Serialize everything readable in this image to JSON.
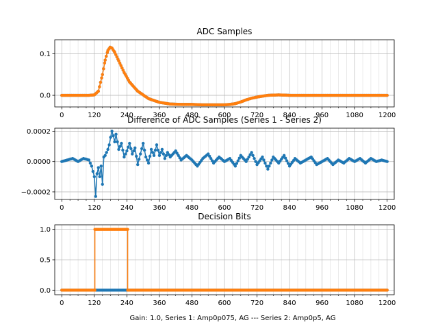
{
  "figure": {
    "xlabel": "Gain: 1.0, Series 1: Amp0p075, AG --- Series 2: Amp0p5, AG"
  },
  "colors": {
    "series1": "#1f77b4",
    "series2": "#ff7f0e",
    "grid": "#b0b0b0"
  },
  "chart_data": [
    {
      "type": "line",
      "title": "ADC Samples",
      "xlim": [
        -26,
        1226
      ],
      "ylim": [
        -0.028,
        0.134
      ],
      "xticks": [
        0,
        120,
        240,
        360,
        480,
        600,
        720,
        840,
        960,
        1080,
        1200
      ],
      "xtick_labels": [
        "0",
        "120",
        "240",
        "360",
        "480",
        "600",
        "720",
        "840",
        "960",
        "1080",
        "1200"
      ],
      "yticks": [
        0.0,
        0.1
      ],
      "ytick_labels": [
        "0.0",
        "0.1"
      ],
      "grid": true,
      "series": [
        {
          "name": "Series 1",
          "x": [
            0,
            100,
            120,
            135,
            150,
            160,
            170,
            178,
            185,
            195,
            210,
            230,
            250,
            280,
            320,
            360,
            400,
            440,
            480,
            520,
            560,
            600,
            620,
            640,
            660,
            680,
            700,
            730,
            760,
            800,
            840,
            900,
            1000,
            1100,
            1200
          ],
          "values": [
            0,
            0,
            0.001,
            0.01,
            0.05,
            0.085,
            0.108,
            0.116,
            0.114,
            0.104,
            0.083,
            0.055,
            0.032,
            0.01,
            -0.008,
            -0.017,
            -0.021,
            -0.022,
            -0.022,
            -0.023,
            -0.023,
            -0.023,
            -0.022,
            -0.02,
            -0.016,
            -0.011,
            -0.007,
            -0.003,
            0,
            0.001,
            0,
            0,
            0,
            0,
            0
          ]
        },
        {
          "name": "Series 2",
          "x": [
            0,
            100,
            120,
            135,
            150,
            160,
            170,
            178,
            185,
            195,
            210,
            230,
            250,
            280,
            320,
            360,
            400,
            440,
            480,
            520,
            560,
            600,
            620,
            640,
            660,
            680,
            700,
            730,
            760,
            800,
            840,
            900,
            1000,
            1100,
            1200
          ],
          "values": [
            0,
            0,
            0.001,
            0.01,
            0.05,
            0.085,
            0.108,
            0.116,
            0.114,
            0.104,
            0.083,
            0.055,
            0.032,
            0.01,
            -0.008,
            -0.017,
            -0.021,
            -0.022,
            -0.022,
            -0.023,
            -0.023,
            -0.023,
            -0.022,
            -0.02,
            -0.016,
            -0.011,
            -0.007,
            -0.003,
            0,
            0.001,
            0,
            0,
            0,
            0,
            0
          ]
        }
      ]
    },
    {
      "type": "line",
      "title": "Difference of ADC Samples (Series 1 - Series 2)",
      "xlim": [
        -26,
        1226
      ],
      "ylim": [
        -0.00025,
        0.00022
      ],
      "xticks": [
        0,
        120,
        240,
        360,
        480,
        600,
        720,
        840,
        960,
        1080,
        1200
      ],
      "xtick_labels": [
        "0",
        "120",
        "240",
        "360",
        "480",
        "600",
        "720",
        "840",
        "960",
        "1080",
        "1200"
      ],
      "yticks": [
        -0.0002,
        0.0,
        0.0002
      ],
      "ytick_labels": [
        "−0.0002",
        "0.0000",
        "0.0002"
      ],
      "grid": true,
      "series": [
        {
          "name": "Series 1 - Series 2",
          "x": [
            0,
            20,
            40,
            60,
            80,
            100,
            110,
            120,
            125,
            130,
            135,
            140,
            145,
            150,
            155,
            160,
            165,
            170,
            175,
            180,
            185,
            190,
            195,
            200,
            210,
            220,
            230,
            240,
            250,
            260,
            270,
            280,
            290,
            300,
            310,
            320,
            330,
            340,
            350,
            360,
            370,
            380,
            390,
            400,
            420,
            440,
            460,
            480,
            500,
            520,
            540,
            560,
            580,
            600,
            620,
            640,
            660,
            680,
            700,
            720,
            740,
            760,
            780,
            800,
            820,
            840,
            860,
            880,
            900,
            920,
            940,
            960,
            980,
            1000,
            1020,
            1040,
            1060,
            1080,
            1100,
            1120,
            1140,
            1160,
            1180,
            1200
          ],
          "values": [
            0,
            1e-05,
            2e-05,
            0,
            2e-05,
            1e-05,
            -3e-05,
            -0.0001,
            -0.00023,
            -8e-05,
            -4e-05,
            -0.0001,
            -3e-05,
            -0.00015,
            3e-05,
            4e-05,
            6e-05,
            8e-05,
            0.00011,
            0.00016,
            0.0002,
            0.00017,
            0.00013,
            0.00018,
            8e-05,
            0.00012,
            3e-05,
            7e-05,
            0.00012,
            5e-05,
            9e-05,
            -2e-05,
            5e-05,
            0.00012,
            3e-05,
            -1e-05,
            8e-05,
            4e-05,
            0.00011,
            4e-05,
            8e-05,
            2e-05,
            6e-05,
            3e-05,
            7e-05,
            1e-05,
            4e-05,
            1e-05,
            -3e-05,
            2e-05,
            5e-05,
            -1e-05,
            3e-05,
            0,
            2e-05,
            -3e-05,
            4e-05,
            0,
            6e-05,
            -2e-05,
            3e-05,
            -5e-05,
            3e-05,
            -1e-05,
            4e-05,
            -3e-05,
            2e-05,
            -1e-05,
            1e-05,
            3e-05,
            -2e-05,
            0,
            2e-05,
            -2e-05,
            1e-05,
            -1e-05,
            2e-05,
            0,
            2e-05,
            -1e-05,
            2e-05,
            0,
            1e-05,
            0
          ]
        }
      ]
    },
    {
      "type": "line",
      "title": "Decision Bits",
      "xlim": [
        -26,
        1226
      ],
      "ylim": [
        -0.075,
        1.075
      ],
      "xticks": [
        0,
        120,
        240,
        360,
        480,
        600,
        720,
        840,
        960,
        1080,
        1200
      ],
      "xtick_labels": [
        "0",
        "120",
        "240",
        "360",
        "480",
        "600",
        "720",
        "840",
        "960",
        "1080",
        "1200"
      ],
      "yticks": [
        0.0,
        0.5,
        1.0
      ],
      "ytick_labels": [
        "0.0",
        "0.5",
        "1.0"
      ],
      "grid": true,
      "series": [
        {
          "name": "Series 1",
          "x": [
            0,
            1200
          ],
          "values": [
            0,
            0
          ]
        },
        {
          "name": "Series 2",
          "x": [
            0,
            122,
            122,
            243,
            243,
            1200
          ],
          "values": [
            0,
            0,
            1,
            1,
            0,
            0
          ]
        }
      ]
    }
  ]
}
